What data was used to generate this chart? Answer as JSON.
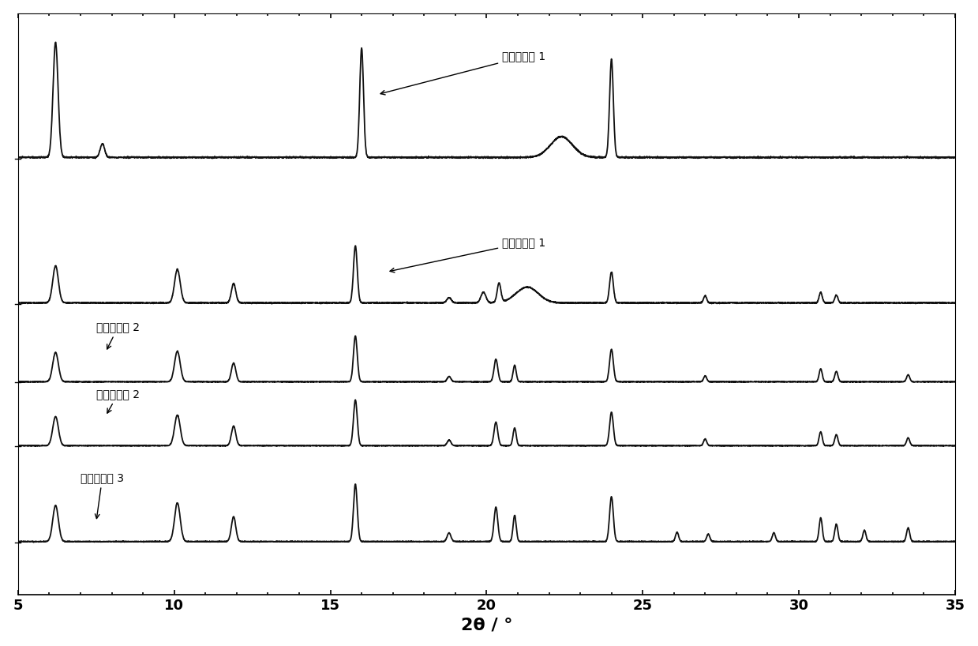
{
  "xlabel": "2θ / °",
  "xlim": [
    5,
    35
  ],
  "background_color": "#ffffff",
  "xlabel_fontsize": 16,
  "tick_fontsize": 13,
  "annotation_fontsize": 10,
  "labels": {
    "curve1": "制备对比例 1",
    "curve2": "制备实施例 1",
    "curve3": "制备实施例 2",
    "curve4": "制备对比例 2",
    "curve5": "制备对比例 3"
  },
  "curve1_peaks": [
    [
      6.2,
      1.0,
      0.08
    ],
    [
      7.7,
      0.12,
      0.07
    ],
    [
      16.0,
      0.95,
      0.06
    ],
    [
      22.4,
      0.18,
      0.35
    ],
    [
      24.0,
      0.85,
      0.06
    ]
  ],
  "curve2_peaks": [
    [
      6.2,
      0.42,
      0.09
    ],
    [
      10.1,
      0.38,
      0.09
    ],
    [
      11.9,
      0.22,
      0.07
    ],
    [
      15.8,
      0.65,
      0.06
    ],
    [
      18.8,
      0.06,
      0.07
    ],
    [
      19.9,
      0.12,
      0.08
    ],
    [
      20.4,
      0.22,
      0.06
    ],
    [
      21.3,
      0.18,
      0.35
    ],
    [
      24.0,
      0.35,
      0.06
    ],
    [
      27.0,
      0.08,
      0.05
    ],
    [
      30.7,
      0.12,
      0.05
    ],
    [
      31.2,
      0.09,
      0.05
    ]
  ],
  "curve3_peaks": [
    [
      6.2,
      0.5,
      0.09
    ],
    [
      10.1,
      0.52,
      0.09
    ],
    [
      11.9,
      0.32,
      0.07
    ],
    [
      15.8,
      0.78,
      0.06
    ],
    [
      18.8,
      0.09,
      0.06
    ],
    [
      20.3,
      0.38,
      0.06
    ],
    [
      20.9,
      0.28,
      0.05
    ],
    [
      24.0,
      0.55,
      0.06
    ],
    [
      27.0,
      0.1,
      0.05
    ],
    [
      30.7,
      0.22,
      0.05
    ],
    [
      31.2,
      0.18,
      0.05
    ],
    [
      33.5,
      0.12,
      0.05
    ]
  ],
  "curve4_peaks": [
    [
      6.2,
      0.52,
      0.09
    ],
    [
      10.1,
      0.55,
      0.09
    ],
    [
      11.9,
      0.35,
      0.07
    ],
    [
      15.8,
      0.82,
      0.06
    ],
    [
      18.8,
      0.1,
      0.06
    ],
    [
      20.3,
      0.42,
      0.06
    ],
    [
      20.9,
      0.32,
      0.05
    ],
    [
      24.0,
      0.6,
      0.06
    ],
    [
      27.0,
      0.12,
      0.05
    ],
    [
      30.7,
      0.25,
      0.05
    ],
    [
      31.2,
      0.2,
      0.05
    ],
    [
      33.5,
      0.14,
      0.05
    ]
  ],
  "curve5_peaks": [
    [
      6.2,
      0.58,
      0.09
    ],
    [
      10.1,
      0.62,
      0.09
    ],
    [
      11.9,
      0.4,
      0.07
    ],
    [
      15.8,
      0.92,
      0.06
    ],
    [
      18.8,
      0.14,
      0.06
    ],
    [
      20.3,
      0.55,
      0.06
    ],
    [
      20.9,
      0.42,
      0.05
    ],
    [
      24.0,
      0.72,
      0.06
    ],
    [
      26.1,
      0.15,
      0.05
    ],
    [
      27.1,
      0.12,
      0.05
    ],
    [
      29.2,
      0.14,
      0.05
    ],
    [
      30.7,
      0.38,
      0.05
    ],
    [
      31.2,
      0.28,
      0.05
    ],
    [
      32.1,
      0.18,
      0.05
    ],
    [
      33.5,
      0.22,
      0.05
    ]
  ],
  "offsets": [
    0.75,
    0.5,
    0.365,
    0.255,
    0.09
  ],
  "scales": [
    0.2,
    0.1,
    0.08,
    0.08,
    0.1
  ]
}
